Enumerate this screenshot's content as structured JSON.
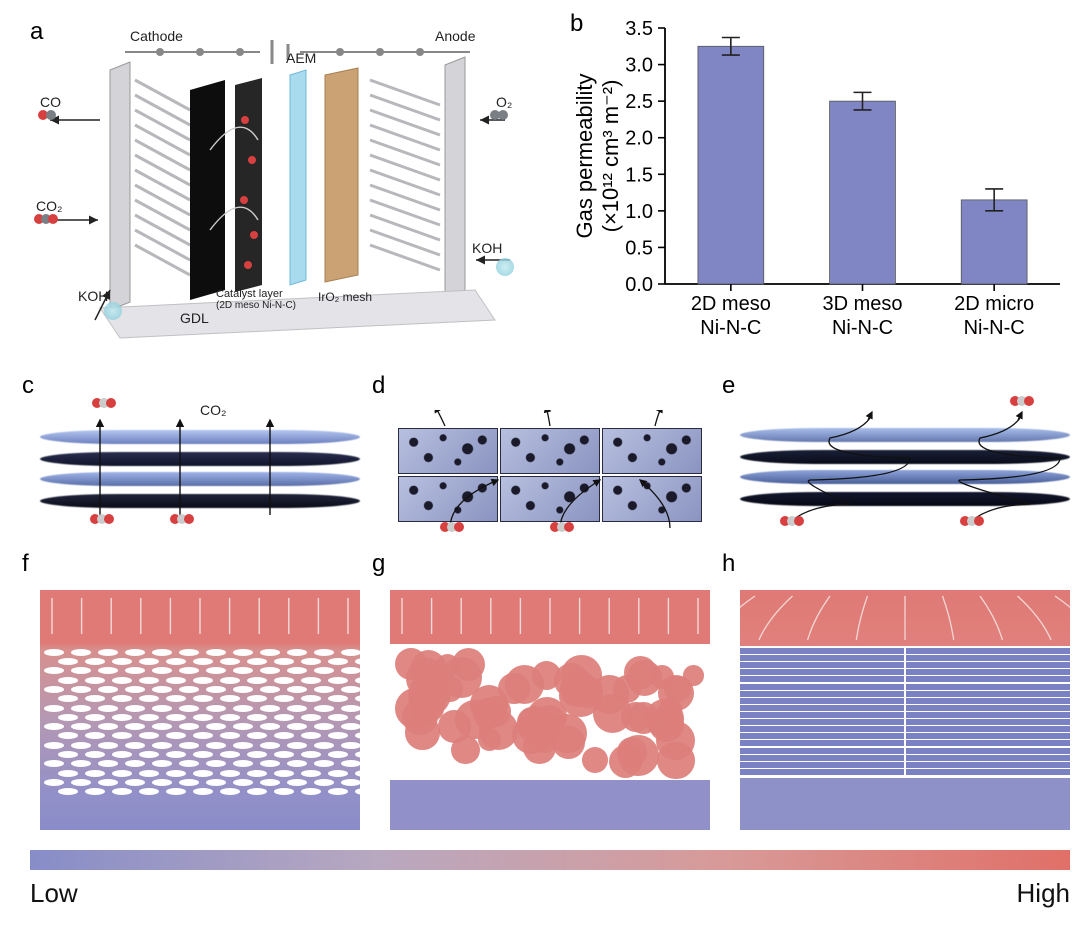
{
  "figure": {
    "panel_labels": {
      "a": "a",
      "b": "b",
      "c": "c",
      "d": "d",
      "e": "e",
      "f": "f",
      "g": "g",
      "h": "h"
    },
    "panel_a": {
      "cathode_label": "Cathode",
      "anode_label": "Anode",
      "aem_label": "AEM",
      "gdl_label": "GDL",
      "catalyst_layer_label": "Catalyst layer",
      "catalyst_layer_sub": "(2D meso Ni-N-C)",
      "iro2_label": "IrO₂ mesh",
      "co_label": "CO",
      "co2_label": "CO₂",
      "o2_label": "O₂",
      "koh_label": "KOH",
      "colors": {
        "endplate": "#cfcfd4",
        "gdl": "#0f0f0f",
        "catalyst": "#2a2a2a",
        "aem": "#9fd5ea",
        "iro2": "#c8a070",
        "atom_red": "#d84040",
        "atom_grey": "#7a7f85",
        "wire": "#888888"
      }
    },
    "panel_b": {
      "type": "bar",
      "ylabel_line1": "Gas permeability",
      "ylabel_line2": "(×10¹² cm³ m⁻²)",
      "categories": [
        "2D meso\nNi-N-C",
        "3D meso\nNi-N-C",
        "2D micro\nNi-N-C"
      ],
      "values": [
        3.25,
        2.5,
        1.15
      ],
      "errors": [
        0.12,
        0.12,
        0.15
      ],
      "ylim": [
        0.0,
        3.5
      ],
      "ytick_step": 0.5,
      "yticks": [
        0.0,
        0.5,
        1.0,
        1.5,
        2.0,
        2.5,
        3.0,
        3.5
      ],
      "bar_color": "#8086c4",
      "errorbar_color": "#222222",
      "bar_width": 0.5,
      "axis_color": "#000000",
      "tick_fontsize": 20,
      "label_fontsize": 22,
      "background_color": "#ffffff"
    },
    "panel_c": {
      "description": "2D meso Ni-N-C layered sheets, straight-through CO2 diffusion",
      "co2_label": "CO₂",
      "sheet_color_top": "#9fb4e8",
      "sheet_color_dark": "#20243a"
    },
    "panel_d": {
      "description": "3D meso Ni-N-C porous cubes stacked 2×3",
      "cube_fill": "#aeb7da",
      "hole_color": "#1a1a2a"
    },
    "panel_e": {
      "description": "2D micro Ni-N-C layered sheets, tortuous diffusion path",
      "sheet_color_top": "#8fa8e0",
      "sheet_color_dark": "#14182a"
    },
    "panel_f": {
      "description": "simulation: stacked ellipses, gradient high→low top→bottom",
      "ellipse_rows": 16,
      "ellipses_per_row": 12
    },
    "panel_g": {
      "description": "simulation: random packed circles, mostly high (red)",
      "circle_count": 60
    },
    "panel_h": {
      "description": "simulation: top red band, dense blue horizontal bars, blue bottom band",
      "bar_count": 18
    },
    "colorbar": {
      "low_label": "Low",
      "high_label": "High",
      "low_color": "#8b90c8",
      "high_color": "#e07070",
      "gradient_stops": [
        "#878dc8",
        "#b8a8c0",
        "#d89a98",
        "#e07068"
      ]
    }
  }
}
